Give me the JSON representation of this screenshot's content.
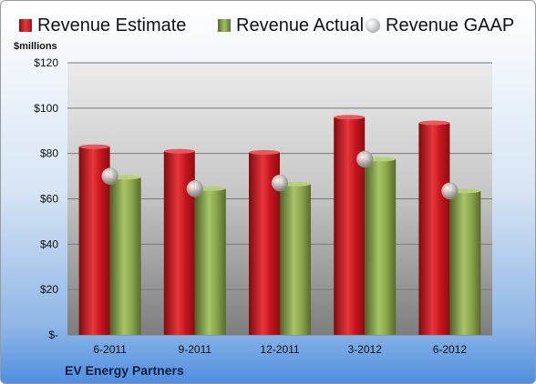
{
  "legend": {
    "estimate": "Revenue Estimate",
    "actual": "Revenue Actual",
    "gaap": "Revenue GAAP"
  },
  "units_label": "$millions",
  "company": "EV Energy Partners",
  "colors": {
    "estimate": "#c8141c",
    "actual": "#8aa64c",
    "gaap": "#c0c0c0"
  },
  "chart_data": {
    "type": "bar",
    "categories": [
      "6-2011",
      "9-2011",
      "12-2011",
      "3-2012",
      "6-2012"
    ],
    "series": [
      {
        "name": "Revenue Estimate",
        "values": [
          83,
          81,
          80.5,
          96,
          93.5
        ]
      },
      {
        "name": "Revenue Actual",
        "values": [
          69.5,
          64.5,
          66.5,
          77.5,
          63.5
        ]
      },
      {
        "name": "Revenue GAAP",
        "values": [
          70,
          64.5,
          67,
          77.5,
          63.5
        ]
      }
    ],
    "ylabel": "$millions",
    "ylim": [
      0,
      120
    ],
    "yticks": [
      0,
      20,
      40,
      60,
      80,
      100,
      120
    ],
    "ytick_labels": [
      "$-",
      "$20",
      "$40",
      "$60",
      "$80",
      "$100",
      "$120"
    ],
    "grid": true,
    "legend_position": "top"
  }
}
